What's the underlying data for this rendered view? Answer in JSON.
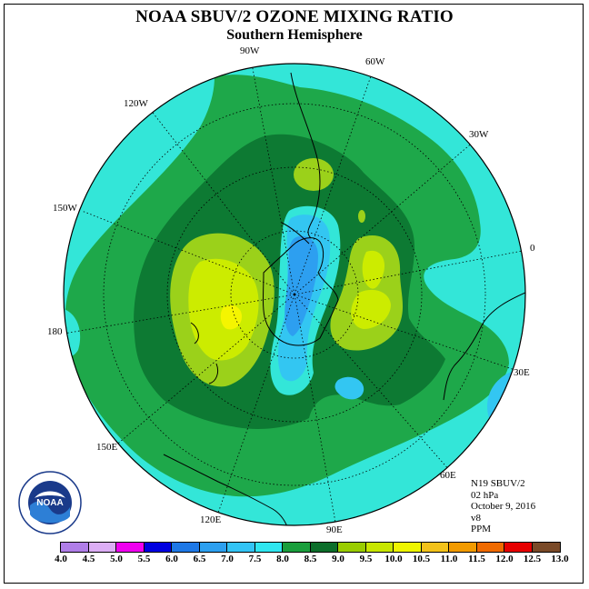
{
  "title": "NOAA SBUV/2 OZONE MIXING RATIO",
  "subtitle": "Southern Hemisphere",
  "longitude_labels": {
    "w90": "90W",
    "w60": "60W",
    "w30": "30W",
    "w120": "120W",
    "w150": "150W",
    "zero": "0",
    "e180": "180",
    "e30": "30E",
    "e150": "150E",
    "e60": "60E",
    "e120": "120E",
    "e90": "90E"
  },
  "info": {
    "instrument": "N19 SBUV/2",
    "level": "02 hPa",
    "date": "October 9, 2016",
    "version": "v8",
    "units": "PPM"
  },
  "logo": {
    "text": "NOAA",
    "icon": "noaa-logo-icon"
  },
  "colorbar": {
    "ticks": [
      "4.0",
      "4.5",
      "5.0",
      "5.5",
      "6.0",
      "6.5",
      "7.0",
      "7.5",
      "8.0",
      "8.5",
      "9.0",
      "9.5",
      "10.0",
      "10.5",
      "11.0",
      "11.5",
      "12.0",
      "12.5",
      "13.0"
    ],
    "colors": [
      "#b07ee8",
      "#dcaef5",
      "#f000f0",
      "#0000e0",
      "#1e78e6",
      "#2da0f0",
      "#33c4f5",
      "#30e6f0",
      "#1a9e3c",
      "#0c6e2a",
      "#99cc00",
      "#c8e600",
      "#eef500",
      "#f3c21a",
      "#f29a00",
      "#f06a00",
      "#e60000",
      "#7a4a28"
    ]
  },
  "colors": {
    "outer_cyan": "#33e6d8",
    "green": "#1ea84a",
    "dark_green": "#0d7a33",
    "lime": "#9bd11a",
    "yellow_green": "#ccec00",
    "yellow": "#f5f500",
    "blue": "#2d9ff0",
    "light_blue": "#33c6f2"
  }
}
